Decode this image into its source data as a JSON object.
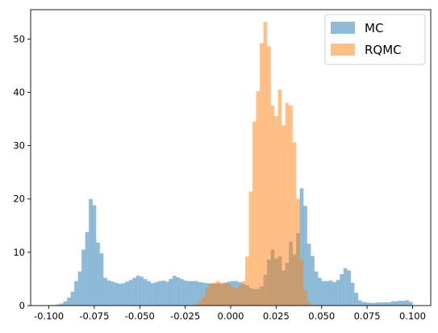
{
  "chart_data": {
    "type": "histogram",
    "title": "",
    "xlabel": "",
    "ylabel": "",
    "xlim": [
      -0.11,
      0.11
    ],
    "ylim": [
      0,
      55.5
    ],
    "grid": false,
    "legend_position": "top-right",
    "bin_width": 0.002,
    "x_ticks": [
      "-0.100",
      "-0.075",
      "-0.050",
      "-0.025",
      "0.000",
      "0.025",
      "0.050",
      "0.075",
      "0.100"
    ],
    "x_tick_values": [
      -0.1,
      -0.075,
      -0.05,
      -0.025,
      0.0,
      0.025,
      0.05,
      0.075,
      0.1
    ],
    "y_ticks": [
      "0",
      "10",
      "20",
      "30",
      "40",
      "50"
    ],
    "y_tick_values": [
      0,
      10,
      20,
      30,
      40,
      50
    ],
    "series": [
      {
        "name": "MC",
        "color": "#1f77b4",
        "opacity": 0.5,
        "bin_start": -0.1,
        "counts": [
          0.1,
          0.1,
          0.2,
          0.4,
          0.8,
          1.5,
          2.6,
          4.6,
          6.4,
          10.5,
          13.8,
          20,
          18.8,
          11.8,
          9.8,
          5.2,
          4.7,
          4.5,
          4.3,
          4.1,
          4.2,
          4.5,
          4.8,
          5.2,
          5.6,
          5.4,
          5,
          4.6,
          4.2,
          4.4,
          4.6,
          4.7,
          4.5,
          5,
          5.6,
          5.3,
          5,
          4.7,
          4.6,
          4.6,
          4.6,
          4.4,
          4.3,
          4.2,
          4.1,
          4.1,
          4.2,
          4.1,
          4.3,
          4.5,
          4.6,
          4.6,
          4.4,
          4.1,
          3.8,
          3.3,
          3.1,
          3.1,
          3.6,
          5.8,
          8.6,
          10.5,
          8.8,
          9.2,
          6.6,
          8,
          12,
          9.6,
          13.6,
          22,
          18.7,
          11.6,
          9.3,
          6.4,
          5.2,
          4.6,
          4.6,
          4.7,
          4.4,
          4.8,
          5.9,
          7,
          6.6,
          4.3,
          2.4,
          1,
          0.7,
          0.6,
          0.5,
          0.5,
          0.6,
          0.6,
          0.6,
          0.6,
          0.8,
          0.8,
          0.9,
          0.9,
          1,
          0.7
        ]
      },
      {
        "name": "RQMC",
        "color": "#ff7f0e",
        "opacity": 0.5,
        "bin_start": -0.02,
        "counts": [
          0.3,
          0.8,
          1.6,
          3.2,
          4.2,
          4.3,
          4.6,
          4.3,
          4.2,
          4,
          3.6,
          3.2,
          3.8,
          4.6,
          9.2,
          21.4,
          34.5,
          40.2,
          49.2,
          53.2,
          48.6,
          37.5,
          35.5,
          40.5,
          33.8,
          38,
          37.5,
          30.6,
          20,
          8.7,
          2.8,
          0.8
        ]
      }
    ]
  }
}
